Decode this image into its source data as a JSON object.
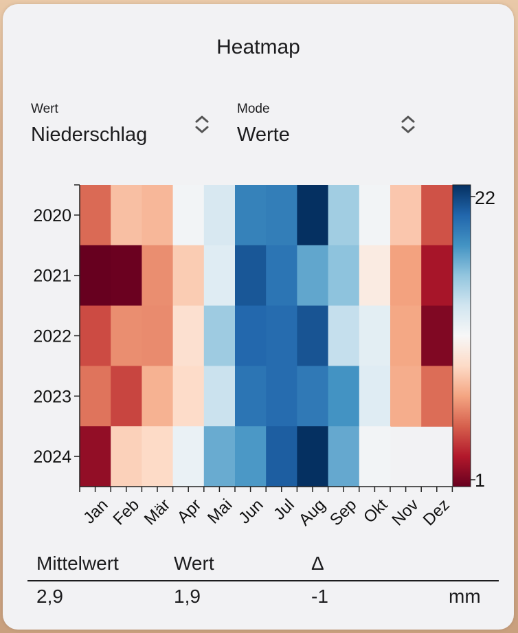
{
  "window": {
    "title": "Heatmap"
  },
  "pickers": [
    {
      "label": "Wert",
      "value": "Niederschlag"
    },
    {
      "label": "Mode",
      "value": "Werte"
    }
  ],
  "icons": {
    "picker_chevron": "chevron-up-down-icon"
  },
  "chart_data": {
    "type": "heatmap",
    "title": "",
    "xlabel": "",
    "ylabel": "",
    "x": [
      "Jan",
      "Feb",
      "Mär",
      "Apr",
      "Mai",
      "Jun",
      "Jul",
      "Aug",
      "Sep",
      "Okt",
      "Nov",
      "Dez"
    ],
    "y": [
      "2020",
      "2021",
      "2022",
      "2023",
      "2024"
    ],
    "values": [
      [
        5.5,
        8.3,
        8.0,
        11.8,
        13.2,
        18.6,
        18.8,
        22.0,
        15.2,
        11.8,
        8.6,
        4.8
      ],
      [
        1.0,
        1.1,
        6.6,
        8.8,
        12.8,
        20.5,
        19.2,
        17.0,
        15.8,
        10.6,
        7.2,
        2.8
      ],
      [
        4.6,
        6.6,
        6.5,
        9.8,
        15.3,
        19.8,
        19.6,
        20.6,
        14.0,
        12.6,
        7.4,
        1.7
      ],
      [
        5.8,
        4.4,
        7.8,
        9.5,
        13.8,
        19.2,
        19.6,
        19.0,
        17.8,
        12.8,
        7.6,
        5.6
      ],
      [
        2.2,
        9.0,
        9.4,
        12.2,
        16.8,
        17.6,
        20.2,
        22.0,
        16.9,
        11.8,
        null,
        null
      ]
    ],
    "colorbar": {
      "min": 1,
      "max": 22,
      "tick_labels": [
        "22",
        "1"
      ],
      "colormap": "RdBu"
    },
    "grid": false,
    "legend": "right"
  },
  "stats": {
    "headers": [
      "Mittelwert",
      "Wert",
      "Δ"
    ],
    "values": [
      "2,9",
      "1,9",
      "-1"
    ],
    "unit": "mm"
  }
}
